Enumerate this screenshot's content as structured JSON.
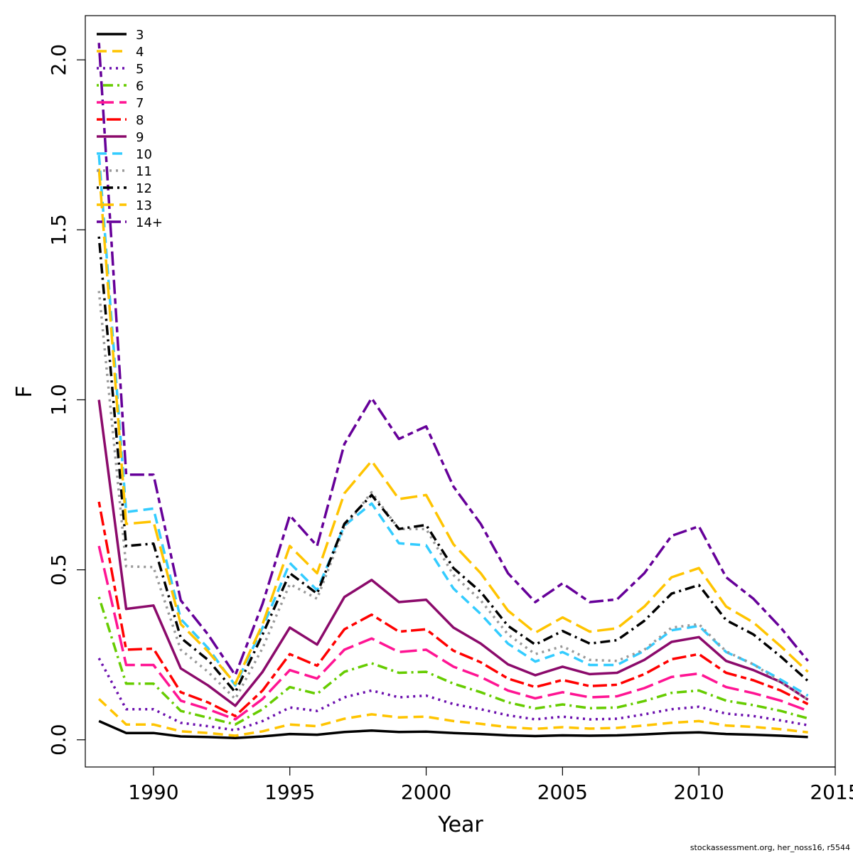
{
  "chart_data": {
    "type": "line",
    "xlabel": "Year",
    "ylabel": "F",
    "xlim": [
      1987.5,
      2015
    ],
    "ylim": [
      -0.08,
      2.13
    ],
    "x_ticks": [
      1990,
      1995,
      2000,
      2005,
      2010,
      2015
    ],
    "y_ticks": [
      0.0,
      0.5,
      1.0,
      1.5,
      2.0
    ],
    "x_tick_labels": [
      "1990",
      "1995",
      "2000",
      "2005",
      "2010",
      "2015"
    ],
    "y_tick_labels": [
      "0.0",
      "0.5",
      "1.0",
      "1.5",
      "2.0"
    ],
    "grid": false,
    "legend_position": "top-left",
    "x": [
      1988,
      1989,
      1990,
      1991,
      1992,
      1993,
      1994,
      1995,
      1996,
      1997,
      1998,
      1999,
      2000,
      2001,
      2002,
      2003,
      2004,
      2005,
      2006,
      2007,
      2008,
      2009,
      2010,
      2011,
      2012,
      2013,
      2014
    ],
    "series": [
      {
        "name": "3",
        "color": "#000000",
        "dash": "solid",
        "values": [
          0.055,
          0.02,
          0.02,
          0.01,
          0.008,
          0.005,
          0.01,
          0.017,
          0.015,
          0.023,
          0.027,
          0.023,
          0.024,
          0.02,
          0.017,
          0.013,
          0.011,
          0.013,
          0.012,
          0.013,
          0.016,
          0.02,
          0.022,
          0.017,
          0.015,
          0.012,
          0.008
        ]
      },
      {
        "name": "4",
        "color": "#FFC400",
        "dash": "dashed",
        "values": [
          0.12,
          0.045,
          0.045,
          0.025,
          0.02,
          0.012,
          0.025,
          0.045,
          0.04,
          0.062,
          0.075,
          0.066,
          0.068,
          0.055,
          0.047,
          0.037,
          0.032,
          0.037,
          0.033,
          0.035,
          0.042,
          0.05,
          0.055,
          0.042,
          0.038,
          0.031,
          0.022
        ]
      },
      {
        "name": "5",
        "color": "#6A0DAD",
        "dash": "dotted",
        "values": [
          0.24,
          0.09,
          0.09,
          0.05,
          0.04,
          0.028,
          0.055,
          0.095,
          0.085,
          0.125,
          0.145,
          0.125,
          0.13,
          0.105,
          0.09,
          0.072,
          0.06,
          0.068,
          0.06,
          0.062,
          0.075,
          0.09,
          0.097,
          0.077,
          0.07,
          0.057,
          0.043
        ]
      },
      {
        "name": "6",
        "color": "#66CC00",
        "dash": "dotdash",
        "values": [
          0.42,
          0.165,
          0.165,
          0.085,
          0.065,
          0.045,
          0.09,
          0.155,
          0.135,
          0.2,
          0.225,
          0.197,
          0.2,
          0.165,
          0.14,
          0.11,
          0.092,
          0.104,
          0.093,
          0.095,
          0.114,
          0.138,
          0.145,
          0.115,
          0.102,
          0.085,
          0.063
        ]
      },
      {
        "name": "7",
        "color": "#FF1493",
        "dash": "longdash",
        "values": [
          0.57,
          0.22,
          0.22,
          0.115,
          0.09,
          0.06,
          0.12,
          0.205,
          0.18,
          0.265,
          0.298,
          0.258,
          0.265,
          0.215,
          0.185,
          0.145,
          0.122,
          0.14,
          0.125,
          0.128,
          0.152,
          0.185,
          0.195,
          0.155,
          0.137,
          0.115,
          0.085
        ]
      },
      {
        "name": "8",
        "color": "#FF0000",
        "dash": "twodash",
        "values": [
          0.7,
          0.265,
          0.268,
          0.14,
          0.11,
          0.07,
          0.145,
          0.252,
          0.218,
          0.325,
          0.368,
          0.318,
          0.325,
          0.262,
          0.228,
          0.18,
          0.155,
          0.176,
          0.158,
          0.162,
          0.193,
          0.237,
          0.252,
          0.197,
          0.175,
          0.145,
          0.105
        ]
      },
      {
        "name": "9",
        "color": "#8B0A6B",
        "dash": "solid",
        "values": [
          1.0,
          0.385,
          0.395,
          0.21,
          0.16,
          0.1,
          0.2,
          0.33,
          0.28,
          0.42,
          0.47,
          0.405,
          0.412,
          0.33,
          0.283,
          0.222,
          0.19,
          0.215,
          0.193,
          0.197,
          0.235,
          0.288,
          0.302,
          0.232,
          0.205,
          0.17,
          0.118
        ]
      },
      {
        "name": "10",
        "color": "#33CCFF",
        "dash": "dashed",
        "values": [
          1.72,
          0.67,
          0.68,
          0.355,
          0.27,
          0.16,
          0.33,
          0.52,
          0.44,
          0.63,
          0.695,
          0.578,
          0.572,
          0.445,
          0.37,
          0.283,
          0.23,
          0.258,
          0.22,
          0.22,
          0.262,
          0.322,
          0.335,
          0.258,
          0.222,
          0.177,
          0.13
        ]
      },
      {
        "name": "11",
        "color": "#999999",
        "dash": "dotted",
        "values": [
          1.32,
          0.51,
          0.508,
          0.265,
          0.2,
          0.12,
          0.27,
          0.458,
          0.415,
          0.625,
          0.728,
          0.62,
          0.62,
          0.485,
          0.41,
          0.31,
          0.252,
          0.275,
          0.235,
          0.232,
          0.265,
          0.33,
          0.34,
          0.26,
          0.222,
          0.17,
          0.118
        ]
      },
      {
        "name": "12",
        "color": "#000000",
        "dash": "dotdash",
        "values": [
          1.48,
          0.57,
          0.577,
          0.3,
          0.235,
          0.14,
          0.31,
          0.49,
          0.43,
          0.635,
          0.72,
          0.62,
          0.632,
          0.505,
          0.435,
          0.335,
          0.28,
          0.32,
          0.283,
          0.293,
          0.35,
          0.43,
          0.455,
          0.352,
          0.31,
          0.245,
          0.173
        ]
      },
      {
        "name": "13",
        "color": "#FFC400",
        "dash": "longdash",
        "values": [
          1.68,
          0.635,
          0.642,
          0.34,
          0.26,
          0.165,
          0.34,
          0.57,
          0.49,
          0.725,
          0.82,
          0.708,
          0.72,
          0.575,
          0.49,
          0.38,
          0.315,
          0.36,
          0.318,
          0.328,
          0.392,
          0.478,
          0.505,
          0.392,
          0.345,
          0.275,
          0.2
        ]
      },
      {
        "name": "14+",
        "color": "#660099",
        "dash": "twodash",
        "values": [
          2.05,
          0.78,
          0.78,
          0.41,
          0.31,
          0.19,
          0.4,
          0.66,
          0.57,
          0.87,
          1.005,
          0.885,
          0.922,
          0.745,
          0.635,
          0.49,
          0.405,
          0.46,
          0.405,
          0.413,
          0.49,
          0.6,
          0.628,
          0.478,
          0.415,
          0.33,
          0.232
        ]
      }
    ]
  },
  "footer": {
    "credit": "stockassessment.org, her_noss16, r5544"
  }
}
